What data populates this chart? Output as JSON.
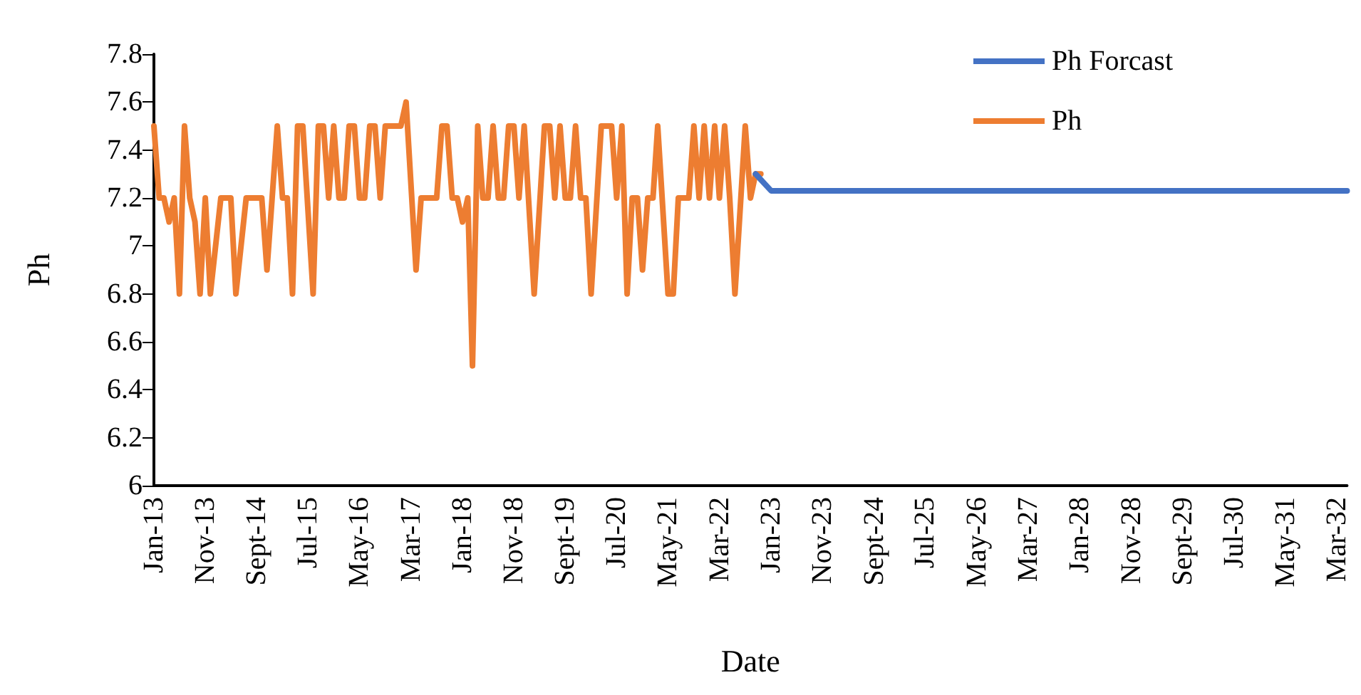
{
  "chart_data": {
    "type": "line",
    "xlabel": "Date",
    "ylabel": "Ph",
    "legend": "top right",
    "grid": false,
    "marker": "none",
    "line_style": "solid",
    "xlim": [
      "2013-01",
      "2032-05"
    ],
    "xticks": [
      {
        "value": "2013-01",
        "label": "Jan-13"
      },
      {
        "value": "2013-11",
        "label": "Nov-13"
      },
      {
        "value": "2014-09",
        "label": "Sept-14"
      },
      {
        "value": "2015-07",
        "label": "Jul-15"
      },
      {
        "value": "2016-05",
        "label": "May-16"
      },
      {
        "value": "2017-03",
        "label": "Mar-17"
      },
      {
        "value": "2018-01",
        "label": "Jan-18"
      },
      {
        "value": "2018-11",
        "label": "Nov-18"
      },
      {
        "value": "2019-09",
        "label": "Sept-19"
      },
      {
        "value": "2020-07",
        "label": "Jul-20"
      },
      {
        "value": "2021-05",
        "label": "May-21"
      },
      {
        "value": "2022-03",
        "label": "Mar-22"
      },
      {
        "value": "2023-01",
        "label": "Jan-23"
      },
      {
        "value": "2023-11",
        "label": "Nov-23"
      },
      {
        "value": "2024-09",
        "label": "Sept-24"
      },
      {
        "value": "2025-07",
        "label": "Jul-25"
      },
      {
        "value": "2026-05",
        "label": "May-26"
      },
      {
        "value": "2027-03",
        "label": "Mar-27"
      },
      {
        "value": "2028-01",
        "label": "Jan-28"
      },
      {
        "value": "2028-11",
        "label": "Nov-28"
      },
      {
        "value": "2029-09",
        "label": "Sept-29"
      },
      {
        "value": "2030-07",
        "label": "Jul-30"
      },
      {
        "value": "2031-05",
        "label": "May-31"
      },
      {
        "value": "2032-03",
        "label": "Mar-32"
      }
    ],
    "ylim": [
      6,
      7.8
    ],
    "yticks": [
      6,
      6.2,
      6.4,
      6.6,
      6.8,
      7,
      7.2,
      7.4,
      7.6,
      7.8
    ],
    "series": [
      {
        "name": "Ph Forcast",
        "color": "#4472c4",
        "x": [
          "2022-10",
          "2023-01",
          "2032-05"
        ],
        "values": [
          7.3,
          7.23,
          7.23
        ]
      },
      {
        "name": "Ph",
        "color": "#ed7d31",
        "x": [
          "2013-01",
          "2013-02",
          "2013-03",
          "2013-04",
          "2013-05",
          "2013-06",
          "2013-07",
          "2013-08",
          "2013-09",
          "2013-10",
          "2013-11",
          "2013-12",
          "2014-02",
          "2014-04",
          "2014-05",
          "2014-07",
          "2014-10",
          "2014-11",
          "2015-01",
          "2015-02",
          "2015-03",
          "2015-04",
          "2015-05",
          "2015-06",
          "2015-08",
          "2015-09",
          "2015-10",
          "2015-11",
          "2015-12",
          "2016-01",
          "2016-02",
          "2016-03",
          "2016-04",
          "2016-05",
          "2016-06",
          "2016-07",
          "2016-08",
          "2016-09",
          "2016-10",
          "2017-01",
          "2017-02",
          "2017-04",
          "2017-05",
          "2017-08",
          "2017-09",
          "2017-10",
          "2017-11",
          "2017-12",
          "2018-01",
          "2018-02",
          "2018-03",
          "2018-04",
          "2018-05",
          "2018-06",
          "2018-07",
          "2018-08",
          "2018-09",
          "2018-10",
          "2018-11",
          "2018-12",
          "2019-01",
          "2019-03",
          "2019-05",
          "2019-06",
          "2019-07",
          "2019-08",
          "2019-09",
          "2019-10",
          "2019-11",
          "2019-12",
          "2020-01",
          "2020-02",
          "2020-04",
          "2020-06",
          "2020-07",
          "2020-08",
          "2020-09",
          "2020-10",
          "2020-11",
          "2020-12",
          "2021-01",
          "2021-02",
          "2021-03",
          "2021-05",
          "2021-06",
          "2021-07",
          "2021-09",
          "2021-10",
          "2021-11",
          "2021-12",
          "2022-01",
          "2022-02",
          "2022-03",
          "2022-04",
          "2022-05",
          "2022-06",
          "2022-08",
          "2022-09",
          "2022-10",
          "2022-11"
        ],
        "values": [
          7.5,
          7.2,
          7.2,
          7.1,
          7.2,
          6.8,
          7.5,
          7.2,
          7.1,
          6.8,
          7.2,
          6.8,
          7.2,
          7.2,
          6.8,
          7.2,
          7.2,
          6.9,
          7.5,
          7.2,
          7.2,
          6.8,
          7.5,
          7.5,
          6.8,
          7.5,
          7.5,
          7.2,
          7.5,
          7.2,
          7.2,
          7.5,
          7.5,
          7.2,
          7.2,
          7.5,
          7.5,
          7.2,
          7.5,
          7.5,
          7.6,
          6.9,
          7.2,
          7.2,
          7.5,
          7.5,
          7.2,
          7.2,
          7.1,
          7.2,
          6.5,
          7.5,
          7.2,
          7.2,
          7.5,
          7.2,
          7.2,
          7.5,
          7.5,
          7.2,
          7.5,
          6.8,
          7.5,
          7.5,
          7.2,
          7.5,
          7.2,
          7.2,
          7.5,
          7.2,
          7.2,
          6.8,
          7.5,
          7.5,
          7.2,
          7.5,
          6.8,
          7.2,
          7.2,
          6.9,
          7.2,
          7.2,
          7.5,
          6.8,
          6.8,
          7.2,
          7.2,
          7.5,
          7.2,
          7.5,
          7.2,
          7.5,
          7.2,
          7.5,
          7.2,
          6.8,
          7.5,
          7.2,
          7.3,
          7.3
        ]
      }
    ]
  }
}
